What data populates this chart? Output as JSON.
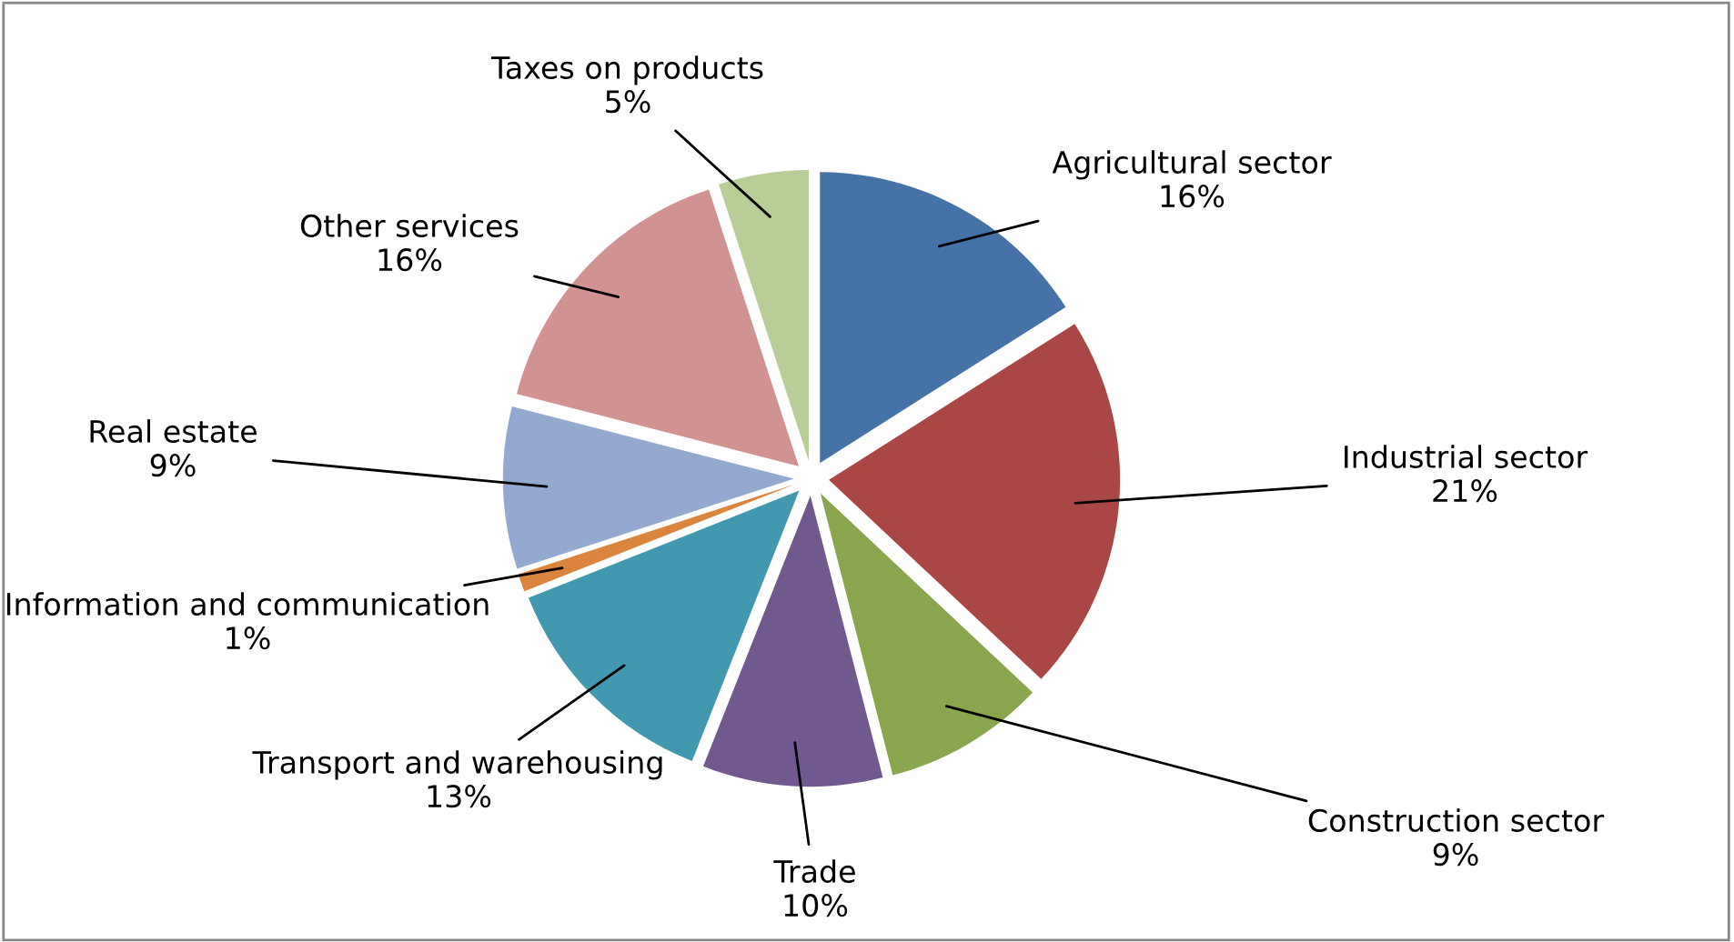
{
  "chart_data": {
    "type": "pie",
    "categories": [
      "Agricultural sector",
      "Industrial sector",
      "Construction sector",
      "Trade",
      "Transport and warehousing",
      "Information and communication",
      "Real estate",
      "Other services",
      "Taxes on products"
    ],
    "values": [
      16,
      21,
      9,
      10,
      13,
      1,
      9,
      16,
      5
    ],
    "value_labels": [
      "16%",
      "21%",
      "9%",
      "10%",
      "13%",
      "1%",
      "9%",
      "16%",
      "5%"
    ],
    "colors": [
      "#4572a7",
      "#aa4643",
      "#89a54e",
      "#71588f",
      "#4198af",
      "#db843d",
      "#93a9cf",
      "#d19392",
      "#b9cd96"
    ],
    "legend": false
  }
}
